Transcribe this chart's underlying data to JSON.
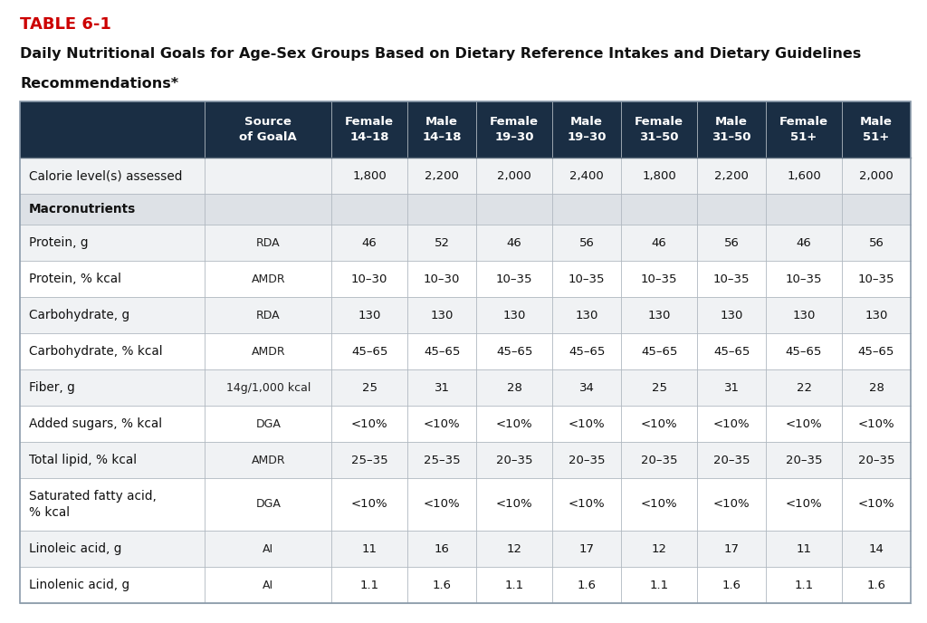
{
  "table_label": "TABLE 6-1",
  "title_line1": "Daily Nutritional Goals for Age-Sex Groups Based on Dietary Reference Intakes and Dietary Guidelines",
  "title_line2": "Recommendations*",
  "header_bg": "#1a2e44",
  "header_fg": "#ffffff",
  "row_bg_odd": "#f0f2f4",
  "row_bg_even": "#ffffff",
  "section_bg": "#dde1e6",
  "border_color": "#b0b8c0",
  "table_label_color": "#cc0000",
  "col_headers": [
    "Source\nof GoalA",
    "Female\n14–18",
    "Male\n14–18",
    "Female\n19–30",
    "Male\n19–30",
    "Female\n31–50",
    "Male\n31–50",
    "Female\n51+",
    "Male\n51+"
  ],
  "rows": [
    {
      "label": "Calorie level(s) assessed",
      "source": "",
      "values": [
        "1,800",
        "2,200",
        "2,000",
        "2,400",
        "1,800",
        "2,200",
        "1,600",
        "2,000"
      ],
      "section": false,
      "tall": false
    },
    {
      "label": "Macronutrients",
      "source": "",
      "values": [
        "",
        "",
        "",
        "",
        "",
        "",
        "",
        ""
      ],
      "section": true,
      "tall": false
    },
    {
      "label": "Protein, g",
      "source": "RDA",
      "values": [
        "46",
        "52",
        "46",
        "56",
        "46",
        "56",
        "46",
        "56"
      ],
      "section": false,
      "tall": false
    },
    {
      "label": "Protein, % kcal",
      "source": "AMDR",
      "values": [
        "10–30",
        "10–30",
        "10–35",
        "10–35",
        "10–35",
        "10–35",
        "10–35",
        "10–35"
      ],
      "section": false,
      "tall": false
    },
    {
      "label": "Carbohydrate, g",
      "source": "RDA",
      "values": [
        "130",
        "130",
        "130",
        "130",
        "130",
        "130",
        "130",
        "130"
      ],
      "section": false,
      "tall": false
    },
    {
      "label": "Carbohydrate, % kcal",
      "source": "AMDR",
      "values": [
        "45–65",
        "45–65",
        "45–65",
        "45–65",
        "45–65",
        "45–65",
        "45–65",
        "45–65"
      ],
      "section": false,
      "tall": false
    },
    {
      "label": "Fiber, g",
      "source": "14g/1,000 kcal",
      "values": [
        "25",
        "31",
        "28",
        "34",
        "25",
        "31",
        "22",
        "28"
      ],
      "section": false,
      "tall": false
    },
    {
      "label": "Added sugars, % kcal",
      "source": "DGA",
      "values": [
        "<10%",
        "<10%",
        "<10%",
        "<10%",
        "<10%",
        "<10%",
        "<10%",
        "<10%"
      ],
      "section": false,
      "tall": false
    },
    {
      "label": "Total lipid, % kcal",
      "source": "AMDR",
      "values": [
        "25–35",
        "25–35",
        "20–35",
        "20–35",
        "20–35",
        "20–35",
        "20–35",
        "20–35"
      ],
      "section": false,
      "tall": false
    },
    {
      "label": "Saturated fatty acid,\n% kcal",
      "source": "DGA",
      "values": [
        "<10%",
        "<10%",
        "<10%",
        "<10%",
        "<10%",
        "<10%",
        "<10%",
        "<10%"
      ],
      "section": false,
      "tall": true
    },
    {
      "label": "Linoleic acid, g",
      "source": "AI",
      "values": [
        "11",
        "16",
        "12",
        "17",
        "12",
        "17",
        "11",
        "14"
      ],
      "section": false,
      "tall": false
    },
    {
      "label": "Linolenic acid, g",
      "source": "AI",
      "values": [
        "1.1",
        "1.6",
        "1.1",
        "1.6",
        "1.1",
        "1.6",
        "1.1",
        "1.6"
      ],
      "section": false,
      "tall": false
    }
  ],
  "bg_color": "#ffffff",
  "fig_width": 10.24,
  "fig_height": 6.88,
  "dpi": 100
}
